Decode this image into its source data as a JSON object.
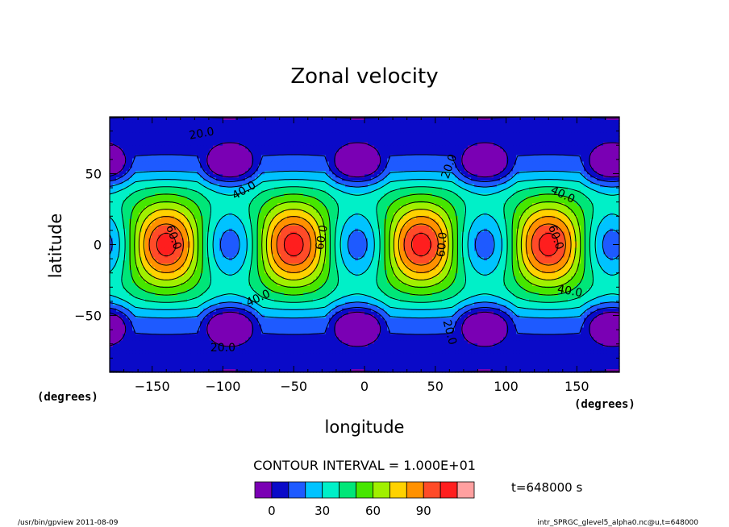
{
  "chart_data": {
    "type": "contour",
    "title": "Zonal velocity",
    "xlabel": "longitude",
    "ylabel": "latitude",
    "x_units": "(degrees)",
    "y_units": "(degrees)",
    "xlim": [
      -180,
      180
    ],
    "ylim": [
      -90,
      90
    ],
    "x_ticks": [
      -150,
      -100,
      -50,
      0,
      50,
      100,
      150
    ],
    "y_ticks": [
      -50,
      0,
      50
    ],
    "contour_interval_text": "CONTOUR INTERVAL = 1.000E+01",
    "contour_interval": 10,
    "time_label": "t=648000 s",
    "colorbar": {
      "colors": [
        "#7a00b4",
        "#0a0ac8",
        "#1e5aff",
        "#00c3ff",
        "#00f0c8",
        "#00e678",
        "#46e600",
        "#a0f000",
        "#ffd200",
        "#ff9100",
        "#ff4b28",
        "#ff1e1e",
        "#ffa0a0"
      ],
      "levels": [
        -10,
        0,
        10,
        20,
        30,
        40,
        50,
        60,
        70,
        80,
        90,
        100,
        110
      ],
      "tick_labels": [
        "0",
        "30",
        "60",
        "90"
      ]
    },
    "contour_labels": [
      "20.0",
      "40.0",
      "60.0",
      "60.0",
      "20.0",
      "40.0",
      "60.0",
      "40.0",
      "20.0",
      "60.0",
      "40.0",
      "20.0"
    ],
    "jet_centers_lon": [
      -140,
      -50,
      40,
      130
    ],
    "jet_max": 105,
    "min_centers_lon": [
      -95,
      -5,
      85,
      175
    ],
    "min_centers_lat": [
      55,
      -55
    ]
  },
  "footer": {
    "left": "/usr/bin/gpview   2011-08-09",
    "right": "intr_SPRGC_glevel5_alpha0.nc@u,t=648000"
  }
}
